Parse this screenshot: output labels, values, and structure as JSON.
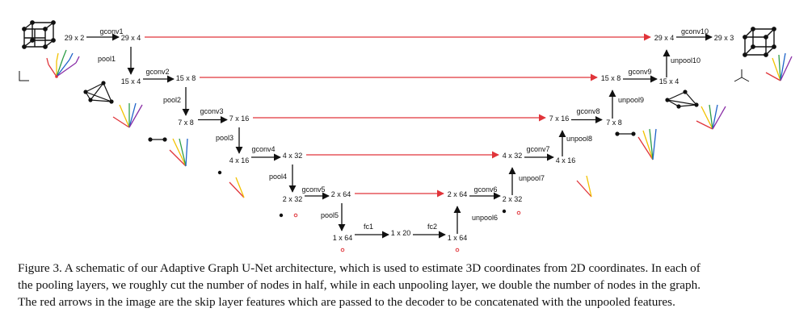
{
  "diagram": {
    "nodes": [
      {
        "id": "n1",
        "label": "29 x 2"
      },
      {
        "id": "n2",
        "label": "29 x 4"
      },
      {
        "id": "n3",
        "label": "15 x 4"
      },
      {
        "id": "n4",
        "label": "15 x 8"
      },
      {
        "id": "n5",
        "label": "7 x 8"
      },
      {
        "id": "n6",
        "label": "7 x 16"
      },
      {
        "id": "n7",
        "label": "4 x 16"
      },
      {
        "id": "n8",
        "label": "4 x 32"
      },
      {
        "id": "n9",
        "label": "2 x 32"
      },
      {
        "id": "n10",
        "label": "2 x 64"
      },
      {
        "id": "n11",
        "label": "1 x 64"
      },
      {
        "id": "n12",
        "label": "1 x 20"
      },
      {
        "id": "n13",
        "label": "1 x 64"
      },
      {
        "id": "n14",
        "label": "2 x 64"
      },
      {
        "id": "n15",
        "label": "2 x 32"
      },
      {
        "id": "n16",
        "label": "4 x 32"
      },
      {
        "id": "n17",
        "label": "4 x 16"
      },
      {
        "id": "n18",
        "label": "7 x 16"
      },
      {
        "id": "n19",
        "label": "7 x 8"
      },
      {
        "id": "n20",
        "label": "15 x 8"
      },
      {
        "id": "n21",
        "label": "15 x 4"
      },
      {
        "id": "n22",
        "label": "29 x 4"
      },
      {
        "id": "n23",
        "label": "29 x 3"
      }
    ],
    "edges": [
      {
        "from": "n1",
        "to": "n2",
        "label": "gconv1"
      },
      {
        "from": "n2",
        "to": "n3",
        "label": "pool1"
      },
      {
        "from": "n3",
        "to": "n4",
        "label": "gconv2"
      },
      {
        "from": "n4",
        "to": "n5",
        "label": "pool2"
      },
      {
        "from": "n5",
        "to": "n6",
        "label": "gconv3"
      },
      {
        "from": "n6",
        "to": "n7",
        "label": "pool3"
      },
      {
        "from": "n7",
        "to": "n8",
        "label": "gconv4"
      },
      {
        "from": "n8",
        "to": "n9",
        "label": "pool4"
      },
      {
        "from": "n9",
        "to": "n10",
        "label": "gconv5"
      },
      {
        "from": "n10",
        "to": "n11",
        "label": "pool5"
      },
      {
        "from": "n11",
        "to": "n12",
        "label": "fc1"
      },
      {
        "from": "n12",
        "to": "n13",
        "label": "fc2"
      },
      {
        "from": "n13",
        "to": "n14",
        "label": "unpool6"
      },
      {
        "from": "n14",
        "to": "n15",
        "label": "gconv6"
      },
      {
        "from": "n15",
        "to": "n16",
        "label": "unpool7"
      },
      {
        "from": "n16",
        "to": "n17",
        "label": "gconv7"
      },
      {
        "from": "n17",
        "to": "n18",
        "label": "unpool8"
      },
      {
        "from": "n18",
        "to": "n19",
        "label": "gconv8"
      },
      {
        "from": "n19",
        "to": "n20",
        "label": "unpool9"
      },
      {
        "from": "n20",
        "to": "n21",
        "label": "gconv9"
      },
      {
        "from": "n21",
        "to": "n22",
        "label": "unpool10"
      },
      {
        "from": "n22",
        "to": "n23",
        "label": "gconv10"
      }
    ],
    "skips": [
      {
        "from": "n2",
        "to": "n22"
      },
      {
        "from": "n4",
        "to": "n20"
      },
      {
        "from": "n6",
        "to": "n18"
      },
      {
        "from": "n8",
        "to": "n16"
      },
      {
        "from": "n10",
        "to": "n14"
      }
    ],
    "colors": {
      "arrow": "#111111",
      "skip": "#e0343a",
      "finger_yellow": "#f2c200",
      "finger_green": "#2e9e47",
      "finger_blue": "#1f63c9",
      "finger_purple": "#8a2ea6",
      "finger_red": "#e0343a"
    }
  },
  "caption": [
    "Figure 3. A schematic of our Adaptive Graph U-Net architecture, which is used to estimate 3D coordinates from 2D coordinates. In each of",
    "the pooling layers, we roughly cut the number of nodes in half, while in each unpooling layer, we double the number of nodes in the graph.",
    "The red arrows in the image are the skip layer features which are passed to the decoder to be concatenated with the unpooled features."
  ]
}
